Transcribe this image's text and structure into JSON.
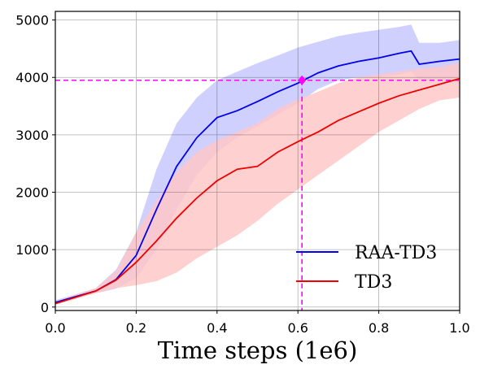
{
  "chart_data": {
    "type": "line",
    "xlabel": "Time steps (1e6)",
    "ylabel": "",
    "title": "",
    "xlim": [
      0.0,
      1.0
    ],
    "ylim": [
      -60,
      5150
    ],
    "x_ticks": [
      "0.0",
      "0.2",
      "0.4",
      "0.6",
      "0.8",
      "1.0"
    ],
    "y_ticks": [
      "0",
      "1000",
      "2000",
      "3000",
      "4000",
      "5000"
    ],
    "grid": true,
    "legend_position": "lower-right",
    "series": [
      {
        "name": "RAA-TD3",
        "color": "#0000ee",
        "band_color": "#c8c8ff",
        "x": [
          0.0,
          0.05,
          0.1,
          0.15,
          0.2,
          0.25,
          0.3,
          0.35,
          0.4,
          0.45,
          0.5,
          0.55,
          0.6,
          0.65,
          0.7,
          0.75,
          0.8,
          0.85,
          0.88,
          0.9,
          0.95,
          1.0
        ],
        "mean": [
          80,
          180,
          280,
          480,
          900,
          1700,
          2450,
          2950,
          3300,
          3420,
          3580,
          3750,
          3900,
          4080,
          4200,
          4280,
          4340,
          4420,
          4460,
          4230,
          4280,
          4320
        ],
        "lower": [
          60,
          150,
          240,
          320,
          500,
          1000,
          1700,
          2300,
          2700,
          2950,
          3150,
          3350,
          3550,
          3800,
          3950,
          4000,
          4000,
          4050,
          4100,
          3950,
          3950,
          4000
        ],
        "upper": [
          120,
          220,
          330,
          650,
          1300,
          2400,
          3200,
          3650,
          3950,
          4100,
          4250,
          4380,
          4520,
          4620,
          4720,
          4780,
          4830,
          4880,
          4920,
          4600,
          4600,
          4650
        ]
      },
      {
        "name": "TD3",
        "color": "#ee0000",
        "band_color": "#ffc8c8",
        "x": [
          0.0,
          0.05,
          0.1,
          0.15,
          0.2,
          0.25,
          0.3,
          0.35,
          0.4,
          0.45,
          0.5,
          0.55,
          0.6,
          0.65,
          0.7,
          0.75,
          0.8,
          0.85,
          0.9,
          0.95,
          1.0
        ],
        "mean": [
          60,
          170,
          280,
          470,
          780,
          1150,
          1550,
          1900,
          2200,
          2400,
          2450,
          2700,
          2880,
          3050,
          3250,
          3400,
          3550,
          3680,
          3780,
          3880,
          3980
        ],
        "lower": [
          40,
          140,
          240,
          330,
          380,
          450,
          600,
          850,
          1050,
          1250,
          1500,
          1800,
          2050,
          2300,
          2550,
          2800,
          3050,
          3250,
          3450,
          3600,
          3650
        ],
        "upper": [
          100,
          220,
          330,
          620,
          1300,
          1850,
          2350,
          2700,
          2900,
          3050,
          3200,
          3450,
          3620,
          3750,
          3900,
          4000,
          4050,
          4100,
          4150,
          4180,
          4250
        ]
      }
    ],
    "annotation": {
      "x": 0.61,
      "y": 3950,
      "color": "#ff00ff"
    }
  }
}
